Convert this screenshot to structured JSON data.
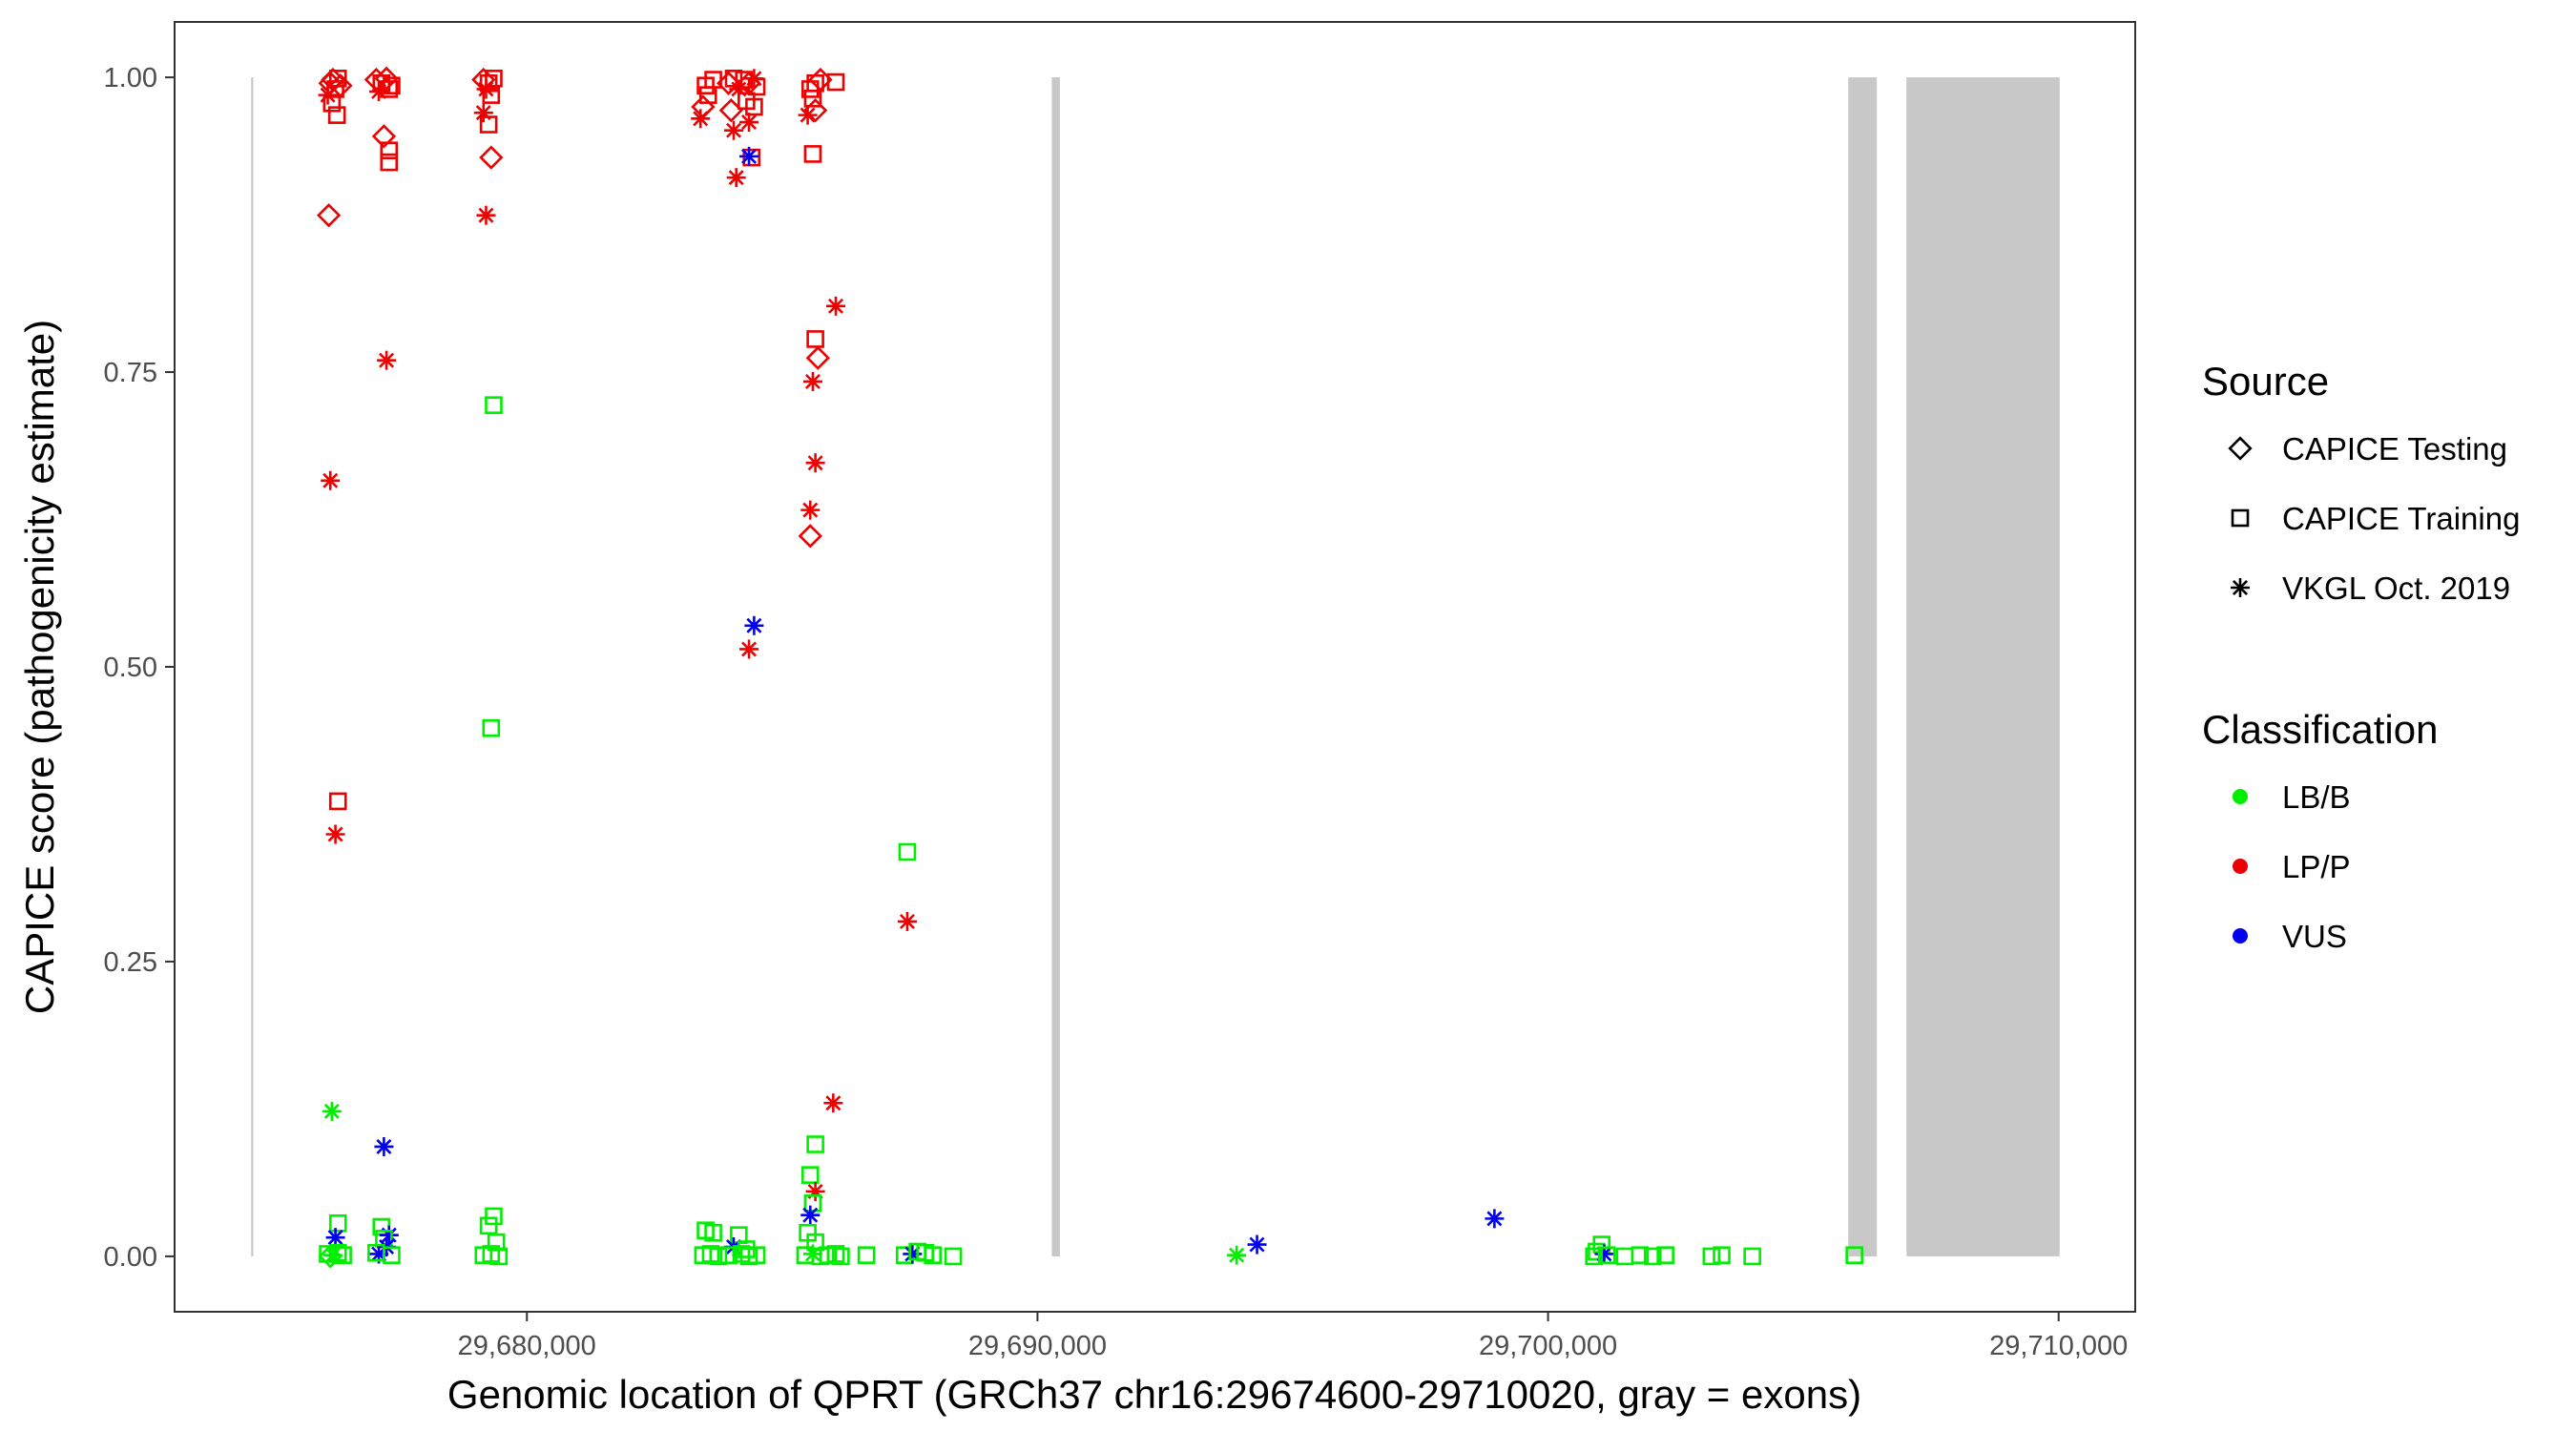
{
  "chart_data": {
    "type": "scatter",
    "title": "",
    "xlabel": "Genomic location of QPRT (GRCh37 chr16:29674600-29710020, gray = exons)",
    "ylabel": "CAPICE score (pathogenicity estimate)",
    "xlim": [
      29673100,
      29711500
    ],
    "ylim": [
      -0.047,
      1.047
    ],
    "x_ticks": [
      29680000,
      29690000,
      29700000,
      29710000
    ],
    "x_tick_labels": [
      "29,680,000",
      "29,690,000",
      "29,700,000",
      "29,710,000"
    ],
    "y_ticks": [
      0,
      0.25,
      0.5,
      0.75,
      1.0
    ],
    "y_tick_labels": [
      "0.00",
      "0.25",
      "0.50",
      "0.75",
      "1.00"
    ],
    "exons": [
      {
        "start": 29674600,
        "end": 29674640
      },
      {
        "start": 29690280,
        "end": 29690440
      },
      {
        "start": 29705880,
        "end": 29706440
      },
      {
        "start": 29707020,
        "end": 29710020
      }
    ],
    "exon_color": "#c8c8c8",
    "legend_source": {
      "title": "Source",
      "items": [
        {
          "label": "CAPICE Testing",
          "shape": "diamond"
        },
        {
          "label": "CAPICE Training",
          "shape": "square"
        },
        {
          "label": "VKGL Oct. 2019",
          "shape": "asterisk"
        }
      ]
    },
    "legend_classification": {
      "title": "Classification",
      "items": [
        {
          "label": "LB/B",
          "color": "#00ee00"
        },
        {
          "label": "LP/P",
          "color": "#ee0000"
        },
        {
          "label": "VUS",
          "color": "#0000ee"
        }
      ]
    },
    "legend_placement": "right",
    "grid": false,
    "points": [
      {
        "x": 29676150,
        "y": 0.995,
        "s": "diamond",
        "c": "LP/P"
      },
      {
        "x": 29676200,
        "y": 0.998,
        "s": "diamond",
        "c": "LP/P"
      },
      {
        "x": 29676250,
        "y": 0.99,
        "s": "square",
        "c": "LP/P"
      },
      {
        "x": 29676300,
        "y": 0.999,
        "s": "square",
        "c": "LP/P"
      },
      {
        "x": 29676100,
        "y": 0.985,
        "s": "asterisk",
        "c": "LP/P"
      },
      {
        "x": 29676350,
        "y": 0.993,
        "s": "diamond",
        "c": "LP/P"
      },
      {
        "x": 29676180,
        "y": 0.978,
        "s": "square",
        "c": "LP/P"
      },
      {
        "x": 29676280,
        "y": 0.968,
        "s": "square",
        "c": "LP/P"
      },
      {
        "x": 29676120,
        "y": 0.883,
        "s": "diamond",
        "c": "LP/P"
      },
      {
        "x": 29676150,
        "y": 0.658,
        "s": "asterisk",
        "c": "LP/P"
      },
      {
        "x": 29676300,
        "y": 0.386,
        "s": "square",
        "c": "LP/P"
      },
      {
        "x": 29676250,
        "y": 0.358,
        "s": "asterisk",
        "c": "LP/P"
      },
      {
        "x": 29676180,
        "y": 0.123,
        "s": "asterisk",
        "c": "LB/B"
      },
      {
        "x": 29676300,
        "y": 0.028,
        "s": "square",
        "c": "LB/B"
      },
      {
        "x": 29676250,
        "y": 0.016,
        "s": "asterisk",
        "c": "VUS"
      },
      {
        "x": 29676100,
        "y": 0.002,
        "s": "square",
        "c": "LB/B"
      },
      {
        "x": 29676200,
        "y": 0.001,
        "s": "asterisk",
        "c": "LB/B"
      },
      {
        "x": 29676300,
        "y": 0.003,
        "s": "square",
        "c": "LB/B"
      },
      {
        "x": 29676400,
        "y": 0.001,
        "s": "square",
        "c": "LB/B"
      },
      {
        "x": 29676150,
        "y": 0.0,
        "s": "diamond",
        "c": "LB/B"
      },
      {
        "x": 29677050,
        "y": 0.998,
        "s": "diamond",
        "c": "LP/P"
      },
      {
        "x": 29677150,
        "y": 0.995,
        "s": "square",
        "c": "LP/P"
      },
      {
        "x": 29677250,
        "y": 0.999,
        "s": "diamond",
        "c": "LP/P"
      },
      {
        "x": 29677350,
        "y": 0.993,
        "s": "square",
        "c": "LP/P"
      },
      {
        "x": 29677100,
        "y": 0.988,
        "s": "asterisk",
        "c": "LP/P"
      },
      {
        "x": 29677300,
        "y": 0.99,
        "s": "square",
        "c": "LP/P"
      },
      {
        "x": 29677200,
        "y": 0.95,
        "s": "diamond",
        "c": "LP/P"
      },
      {
        "x": 29677300,
        "y": 0.938,
        "s": "square",
        "c": "LP/P"
      },
      {
        "x": 29677300,
        "y": 0.928,
        "s": "square",
        "c": "LP/P"
      },
      {
        "x": 29677250,
        "y": 0.76,
        "s": "asterisk",
        "c": "LP/P"
      },
      {
        "x": 29677200,
        "y": 0.093,
        "s": "asterisk",
        "c": "VUS"
      },
      {
        "x": 29677150,
        "y": 0.025,
        "s": "square",
        "c": "LB/B"
      },
      {
        "x": 29677300,
        "y": 0.018,
        "s": "asterisk",
        "c": "VUS"
      },
      {
        "x": 29677200,
        "y": 0.015,
        "s": "square",
        "c": "LB/B"
      },
      {
        "x": 29677250,
        "y": 0.008,
        "s": "asterisk",
        "c": "VUS"
      },
      {
        "x": 29677100,
        "y": 0.002,
        "s": "asterisk",
        "c": "VUS"
      },
      {
        "x": 29677350,
        "y": 0.001,
        "s": "square",
        "c": "LB/B"
      },
      {
        "x": 29677050,
        "y": 0.003,
        "s": "square",
        "c": "LB/B"
      },
      {
        "x": 29679150,
        "y": 0.998,
        "s": "diamond",
        "c": "LP/P"
      },
      {
        "x": 29679250,
        "y": 0.995,
        "s": "square",
        "c": "LP/P"
      },
      {
        "x": 29679350,
        "y": 0.999,
        "s": "square",
        "c": "LP/P"
      },
      {
        "x": 29679200,
        "y": 0.99,
        "s": "asterisk",
        "c": "LP/P"
      },
      {
        "x": 29679300,
        "y": 0.985,
        "s": "square",
        "c": "LP/P"
      },
      {
        "x": 29679150,
        "y": 0.97,
        "s": "asterisk",
        "c": "LP/P"
      },
      {
        "x": 29679250,
        "y": 0.96,
        "s": "square",
        "c": "LP/P"
      },
      {
        "x": 29679300,
        "y": 0.932,
        "s": "diamond",
        "c": "LP/P"
      },
      {
        "x": 29679200,
        "y": 0.883,
        "s": "asterisk",
        "c": "LP/P"
      },
      {
        "x": 29679350,
        "y": 0.722,
        "s": "square",
        "c": "LB/B"
      },
      {
        "x": 29679300,
        "y": 0.448,
        "s": "square",
        "c": "LB/B"
      },
      {
        "x": 29679350,
        "y": 0.034,
        "s": "square",
        "c": "LB/B"
      },
      {
        "x": 29679250,
        "y": 0.026,
        "s": "square",
        "c": "LB/B"
      },
      {
        "x": 29679400,
        "y": 0.012,
        "s": "square",
        "c": "LB/B"
      },
      {
        "x": 29679150,
        "y": 0.001,
        "s": "square",
        "c": "LB/B"
      },
      {
        "x": 29679300,
        "y": 0.002,
        "s": "square",
        "c": "LB/B"
      },
      {
        "x": 29679450,
        "y": 0.0,
        "s": "square",
        "c": "LB/B"
      },
      {
        "x": 29683500,
        "y": 0.993,
        "s": "square",
        "c": "LP/P"
      },
      {
        "x": 29683650,
        "y": 0.998,
        "s": "square",
        "c": "LP/P"
      },
      {
        "x": 29683550,
        "y": 0.985,
        "s": "square",
        "c": "LP/P"
      },
      {
        "x": 29683450,
        "y": 0.975,
        "s": "diamond",
        "c": "LP/P"
      },
      {
        "x": 29683400,
        "y": 0.965,
        "s": "asterisk",
        "c": "LP/P"
      },
      {
        "x": 29683950,
        "y": 0.995,
        "s": "diamond",
        "c": "LP/P"
      },
      {
        "x": 29684050,
        "y": 0.999,
        "s": "square",
        "c": "LP/P"
      },
      {
        "x": 29684150,
        "y": 0.99,
        "s": "asterisk",
        "c": "LP/P"
      },
      {
        "x": 29684250,
        "y": 0.998,
        "s": "square",
        "c": "LP/P"
      },
      {
        "x": 29684350,
        "y": 0.995,
        "s": "diamond",
        "c": "LP/P"
      },
      {
        "x": 29684450,
        "y": 0.999,
        "s": "asterisk",
        "c": "LP/P"
      },
      {
        "x": 29684500,
        "y": 0.992,
        "s": "square",
        "c": "LP/P"
      },
      {
        "x": 29684000,
        "y": 0.972,
        "s": "diamond",
        "c": "LP/P"
      },
      {
        "x": 29684300,
        "y": 0.98,
        "s": "square",
        "c": "LP/P"
      },
      {
        "x": 29684450,
        "y": 0.975,
        "s": "square",
        "c": "LP/P"
      },
      {
        "x": 29684050,
        "y": 0.955,
        "s": "asterisk",
        "c": "LP/P"
      },
      {
        "x": 29684350,
        "y": 0.962,
        "s": "asterisk",
        "c": "LP/P"
      },
      {
        "x": 29684400,
        "y": 0.932,
        "s": "square",
        "c": "LP/P"
      },
      {
        "x": 29684350,
        "y": 0.933,
        "s": "asterisk",
        "c": "VUS"
      },
      {
        "x": 29684100,
        "y": 0.915,
        "s": "asterisk",
        "c": "LP/P"
      },
      {
        "x": 29684450,
        "y": 0.535,
        "s": "asterisk",
        "c": "VUS"
      },
      {
        "x": 29684350,
        "y": 0.515,
        "s": "asterisk",
        "c": "LP/P"
      },
      {
        "x": 29683500,
        "y": 0.022,
        "s": "square",
        "c": "LB/B"
      },
      {
        "x": 29683650,
        "y": 0.02,
        "s": "square",
        "c": "LB/B"
      },
      {
        "x": 29684150,
        "y": 0.018,
        "s": "square",
        "c": "LB/B"
      },
      {
        "x": 29684050,
        "y": 0.008,
        "s": "asterisk",
        "c": "VUS"
      },
      {
        "x": 29684300,
        "y": 0.006,
        "s": "square",
        "c": "LB/B"
      },
      {
        "x": 29683450,
        "y": 0.001,
        "s": "square",
        "c": "LB/B"
      },
      {
        "x": 29683600,
        "y": 0.002,
        "s": "square",
        "c": "LB/B"
      },
      {
        "x": 29683750,
        "y": 0.0,
        "s": "square",
        "c": "LB/B"
      },
      {
        "x": 29683950,
        "y": 0.001,
        "s": "square",
        "c": "LB/B"
      },
      {
        "x": 29684200,
        "y": 0.002,
        "s": "square",
        "c": "LB/B"
      },
      {
        "x": 29684350,
        "y": 0.0,
        "s": "square",
        "c": "LB/B"
      },
      {
        "x": 29684500,
        "y": 0.001,
        "s": "square",
        "c": "LB/B"
      },
      {
        "x": 29685550,
        "y": 0.99,
        "s": "square",
        "c": "LP/P"
      },
      {
        "x": 29685650,
        "y": 0.995,
        "s": "square",
        "c": "LP/P"
      },
      {
        "x": 29685750,
        "y": 0.998,
        "s": "diamond",
        "c": "LP/P"
      },
      {
        "x": 29686050,
        "y": 0.996,
        "s": "square",
        "c": "LP/P"
      },
      {
        "x": 29685600,
        "y": 0.982,
        "s": "square",
        "c": "LP/P"
      },
      {
        "x": 29685500,
        "y": 0.968,
        "s": "asterisk",
        "c": "LP/P"
      },
      {
        "x": 29685650,
        "y": 0.972,
        "s": "diamond",
        "c": "LP/P"
      },
      {
        "x": 29685600,
        "y": 0.935,
        "s": "square",
        "c": "LP/P"
      },
      {
        "x": 29686050,
        "y": 0.806,
        "s": "asterisk",
        "c": "LP/P"
      },
      {
        "x": 29685650,
        "y": 0.778,
        "s": "square",
        "c": "LP/P"
      },
      {
        "x": 29685700,
        "y": 0.762,
        "s": "diamond",
        "c": "LP/P"
      },
      {
        "x": 29685600,
        "y": 0.742,
        "s": "asterisk",
        "c": "LP/P"
      },
      {
        "x": 29685650,
        "y": 0.673,
        "s": "asterisk",
        "c": "LP/P"
      },
      {
        "x": 29685550,
        "y": 0.633,
        "s": "asterisk",
        "c": "LP/P"
      },
      {
        "x": 29685550,
        "y": 0.611,
        "s": "diamond",
        "c": "LP/P"
      },
      {
        "x": 29686000,
        "y": 0.13,
        "s": "asterisk",
        "c": "LP/P"
      },
      {
        "x": 29685650,
        "y": 0.095,
        "s": "square",
        "c": "LB/B"
      },
      {
        "x": 29685550,
        "y": 0.069,
        "s": "square",
        "c": "LB/B"
      },
      {
        "x": 29685650,
        "y": 0.055,
        "s": "asterisk",
        "c": "LP/P"
      },
      {
        "x": 29685600,
        "y": 0.045,
        "s": "square",
        "c": "LB/B"
      },
      {
        "x": 29685550,
        "y": 0.035,
        "s": "asterisk",
        "c": "VUS"
      },
      {
        "x": 29685500,
        "y": 0.02,
        "s": "square",
        "c": "LB/B"
      },
      {
        "x": 29685650,
        "y": 0.012,
        "s": "square",
        "c": "LB/B"
      },
      {
        "x": 29685450,
        "y": 0.001,
        "s": "square",
        "c": "LB/B"
      },
      {
        "x": 29685600,
        "y": 0.002,
        "s": "asterisk",
        "c": "LB/B"
      },
      {
        "x": 29685750,
        "y": 0.0,
        "s": "square",
        "c": "LB/B"
      },
      {
        "x": 29685900,
        "y": 0.001,
        "s": "square",
        "c": "LB/B"
      },
      {
        "x": 29686050,
        "y": 0.002,
        "s": "square",
        "c": "LB/B"
      },
      {
        "x": 29686150,
        "y": 0.0,
        "s": "square",
        "c": "LB/B"
      },
      {
        "x": 29686650,
        "y": 0.001,
        "s": "square",
        "c": "LB/B"
      },
      {
        "x": 29687450,
        "y": 0.343,
        "s": "square",
        "c": "LB/B"
      },
      {
        "x": 29687450,
        "y": 0.284,
        "s": "asterisk",
        "c": "LP/P"
      },
      {
        "x": 29687400,
        "y": 0.001,
        "s": "square",
        "c": "LB/B"
      },
      {
        "x": 29687550,
        "y": 0.002,
        "s": "asterisk",
        "c": "VUS"
      },
      {
        "x": 29687650,
        "y": 0.004,
        "s": "square",
        "c": "LB/B"
      },
      {
        "x": 29687800,
        "y": 0.003,
        "s": "square",
        "c": "LB/B"
      },
      {
        "x": 29687950,
        "y": 0.001,
        "s": "square",
        "c": "LB/B"
      },
      {
        "x": 29688350,
        "y": 0.0,
        "s": "square",
        "c": "LB/B"
      },
      {
        "x": 29693900,
        "y": 0.001,
        "s": "asterisk",
        "c": "LB/B"
      },
      {
        "x": 29694300,
        "y": 0.01,
        "s": "asterisk",
        "c": "VUS"
      },
      {
        "x": 29698950,
        "y": 0.032,
        "s": "asterisk",
        "c": "VUS"
      },
      {
        "x": 29700950,
        "y": 0.004,
        "s": "square",
        "c": "LB/B"
      },
      {
        "x": 29701050,
        "y": 0.01,
        "s": "square",
        "c": "LB/B"
      },
      {
        "x": 29701100,
        "y": 0.002,
        "s": "asterisk",
        "c": "VUS"
      },
      {
        "x": 29701150,
        "y": 0.001,
        "s": "square",
        "c": "LB/B"
      },
      {
        "x": 29700900,
        "y": 0.0,
        "s": "square",
        "c": "LB/B"
      },
      {
        "x": 29701500,
        "y": 0.0,
        "s": "square",
        "c": "LB/B"
      },
      {
        "x": 29701800,
        "y": 0.001,
        "s": "square",
        "c": "LB/B"
      },
      {
        "x": 29702050,
        "y": 0.0,
        "s": "square",
        "c": "LB/B"
      },
      {
        "x": 29702300,
        "y": 0.001,
        "s": "square",
        "c": "LB/B"
      },
      {
        "x": 29703200,
        "y": 0.0,
        "s": "square",
        "c": "LB/B"
      },
      {
        "x": 29703400,
        "y": 0.001,
        "s": "square",
        "c": "LB/B"
      },
      {
        "x": 29704000,
        "y": 0.0,
        "s": "square",
        "c": "LB/B"
      },
      {
        "x": 29706000,
        "y": 0.001,
        "s": "square",
        "c": "LB/B"
      }
    ]
  }
}
